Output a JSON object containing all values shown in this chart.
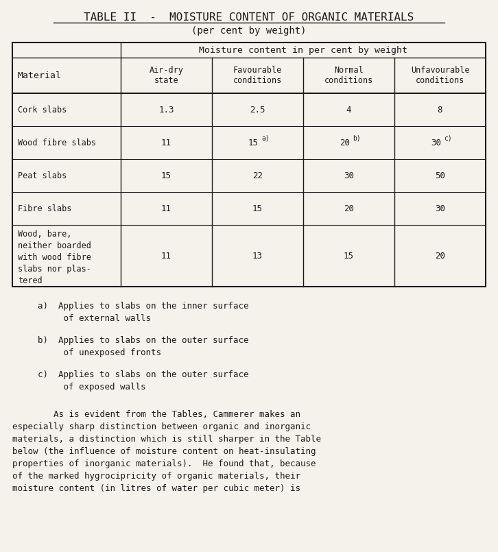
{
  "title_line1": "TABLE II  -  MOISTURE CONTENT OF ORGANIC MATERIALS",
  "title_line2": "(per cent by weight)",
  "bg_color": "#f5f2eb",
  "text_color": "#1a1a1a",
  "col_header_span": "Moisture content in per cent by weight",
  "col_headers": [
    "Air-dry\nstate",
    "Favourable\nconditions",
    "Normal\nconditions",
    "Unfavourable\nconditions"
  ],
  "row_label_header": "Material",
  "rows": [
    {
      "material": "Cork slabs",
      "values": [
        "1.3",
        "2.5",
        "4",
        "8"
      ],
      "superscripts": [
        "",
        "",
        "",
        ""
      ]
    },
    {
      "material": "Wood fibre slabs",
      "values": [
        "11",
        "15",
        "20",
        "30"
      ],
      "superscripts": [
        "",
        "a)",
        "b)",
        "c)"
      ]
    },
    {
      "material": "Peat slabs",
      "values": [
        "15",
        "22",
        "30",
        "50"
      ],
      "superscripts": [
        "",
        "",
        "",
        ""
      ]
    },
    {
      "material": "Fibre slabs",
      "values": [
        "11",
        "15",
        "20",
        "30"
      ],
      "superscripts": [
        "",
        "",
        "",
        ""
      ]
    },
    {
      "material": "Wood, bare,\nneither boarded\nwith wood fibre\nslabs nor plas-\ntered",
      "values": [
        "11",
        "13",
        "15",
        "20"
      ],
      "superscripts": [
        "",
        "",
        "",
        ""
      ]
    }
  ],
  "footnotes": [
    "a)  Applies to slabs on the inner surface\n     of external walls",
    "b)  Applies to slabs on the outer surface\n     of unexposed fronts",
    "c)  Applies to slabs on the outer surface\n     of exposed walls"
  ],
  "paragraph": "        As is evident from the Tables, Cammerer makes an\nespecially sharp distinction between organic and inorganic\nmaterials, a distinction which is still sharper in the Table\nbelow (the influence of moisture content on heat-insulating\nproperties of inorganic materials).  He found that, because\nof the marked hygrocipricity of organic materials, their\nmoisture content (in litres of water per cubic meter) is"
}
